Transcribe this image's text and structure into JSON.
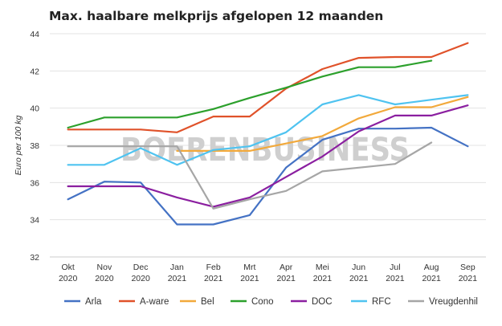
{
  "title": "Max. haalbare melkprijs afgelopen 12 maanden",
  "watermark": "BOERENBUSINESS",
  "chart_data": {
    "type": "line",
    "title": "Max. haalbare melkprijs afgelopen 12 maanden",
    "xlabel": "",
    "ylabel": "Euro per 100 kg",
    "ylim": [
      32,
      44
    ],
    "yticks": [
      32,
      34,
      36,
      38,
      40,
      42,
      44
    ],
    "grid": true,
    "legend_position": "bottom",
    "categories": [
      [
        "Okt",
        "2020"
      ],
      [
        "Nov",
        "2020"
      ],
      [
        "Dec",
        "2020"
      ],
      [
        "Jan",
        "2021"
      ],
      [
        "Feb",
        "2021"
      ],
      [
        "Mrt",
        "2021"
      ],
      [
        "Apr",
        "2021"
      ],
      [
        "Mei",
        "2021"
      ],
      [
        "Jun",
        "2021"
      ],
      [
        "Jul",
        "2021"
      ],
      [
        "Aug",
        "2021"
      ],
      [
        "Sep",
        "2021"
      ]
    ],
    "series": [
      {
        "name": "Arla",
        "color": "#4472c4",
        "values": [
          35.1,
          36.05,
          36.0,
          33.75,
          33.75,
          34.25,
          36.8,
          38.3,
          38.9,
          38.9,
          38.95,
          37.95
        ]
      },
      {
        "name": "A-ware",
        "color": "#e0522a",
        "values": [
          38.85,
          38.85,
          38.85,
          38.7,
          39.55,
          39.55,
          41.05,
          42.1,
          42.7,
          42.75,
          42.75,
          43.5
        ]
      },
      {
        "name": "Bel",
        "color": "#f2a93b",
        "values": [
          null,
          null,
          null,
          37.7,
          37.7,
          37.7,
          38.1,
          38.5,
          39.45,
          40.05,
          40.05,
          40.6
        ]
      },
      {
        "name": "Cono",
        "color": "#2ca02c",
        "values": [
          38.95,
          39.5,
          39.5,
          39.5,
          39.95,
          40.55,
          41.1,
          41.7,
          42.2,
          42.2,
          42.55,
          null
        ]
      },
      {
        "name": "DOC",
        "color": "#8b1fa0",
        "values": [
          35.8,
          35.8,
          35.8,
          35.2,
          34.7,
          35.2,
          36.3,
          37.4,
          38.75,
          39.6,
          39.6,
          40.15
        ]
      },
      {
        "name": "RFC",
        "color": "#4fc3f0",
        "values": [
          36.95,
          36.95,
          37.85,
          36.95,
          37.75,
          37.95,
          38.7,
          40.2,
          40.7,
          40.2,
          40.45,
          40.7
        ]
      },
      {
        "name": "Vreugdenhil",
        "color": "#a6a6a6",
        "values": [
          37.95,
          37.95,
          37.95,
          37.95,
          34.6,
          35.1,
          35.55,
          36.6,
          36.8,
          37.0,
          38.15,
          null
        ]
      }
    ]
  }
}
